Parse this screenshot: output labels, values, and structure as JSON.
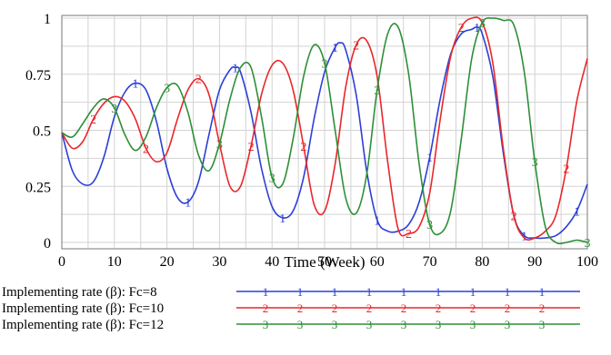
{
  "chart_data": {
    "type": "line",
    "title": "",
    "xlabel": "Time (Week)",
    "ylabel": "",
    "xlim": [
      0,
      100
    ],
    "ylim": [
      0,
      1
    ],
    "x_ticks": [
      "0",
      "10",
      "20",
      "30",
      "40",
      "50",
      "60",
      "70",
      "80",
      "90",
      "100"
    ],
    "y_ticks": [
      "0",
      "0.25",
      "0.5",
      "0.75",
      "1"
    ],
    "grid": true,
    "legend_position": "bottom",
    "series": [
      {
        "name": "Implementing rate (β): Fc=8",
        "marker": "1",
        "color": "#2b3fd6",
        "x": [
          0,
          2,
          4,
          6,
          8,
          10,
          12,
          14,
          16,
          18,
          20,
          22,
          24,
          26,
          28,
          30,
          32,
          33,
          34,
          36,
          38,
          40,
          42,
          44,
          46,
          48,
          50,
          52,
          53,
          54,
          56,
          58,
          60,
          62,
          64,
          66,
          68,
          70,
          72,
          74,
          76,
          78,
          79,
          80,
          82,
          84,
          86,
          88,
          90,
          92,
          94,
          96,
          98,
          100
        ],
        "values": [
          0.49,
          0.32,
          0.26,
          0.27,
          0.38,
          0.56,
          0.67,
          0.71,
          0.68,
          0.54,
          0.33,
          0.2,
          0.18,
          0.27,
          0.48,
          0.68,
          0.77,
          0.78,
          0.76,
          0.58,
          0.33,
          0.16,
          0.11,
          0.14,
          0.29,
          0.55,
          0.76,
          0.87,
          0.89,
          0.86,
          0.66,
          0.32,
          0.1,
          0.05,
          0.05,
          0.08,
          0.18,
          0.38,
          0.64,
          0.84,
          0.93,
          0.95,
          0.96,
          0.93,
          0.74,
          0.4,
          0.12,
          0.03,
          0.02,
          0.02,
          0.03,
          0.07,
          0.14,
          0.26
        ]
      },
      {
        "name": "Implementing rate (β): Fc=10",
        "marker": "2",
        "color": "#e8272b",
        "x": [
          0,
          2,
          4,
          6,
          8,
          10,
          12,
          14,
          16,
          18,
          20,
          22,
          24,
          26,
          28,
          30,
          32,
          34,
          36,
          38,
          40,
          42,
          44,
          46,
          48,
          50,
          52,
          54,
          56,
          58,
          60,
          62,
          64,
          66,
          68,
          70,
          72,
          74,
          76,
          78,
          80,
          82,
          84,
          86,
          88,
          90,
          92,
          94,
          96,
          98,
          100
        ],
        "values": [
          0.49,
          0.42,
          0.45,
          0.55,
          0.62,
          0.65,
          0.63,
          0.55,
          0.42,
          0.36,
          0.4,
          0.55,
          0.68,
          0.73,
          0.66,
          0.44,
          0.25,
          0.25,
          0.43,
          0.66,
          0.79,
          0.8,
          0.68,
          0.43,
          0.17,
          0.14,
          0.35,
          0.69,
          0.88,
          0.9,
          0.74,
          0.36,
          0.06,
          0.04,
          0.07,
          0.22,
          0.55,
          0.83,
          0.96,
          1.0,
          0.98,
          0.8,
          0.42,
          0.12,
          0.02,
          0.02,
          0.05,
          0.12,
          0.33,
          0.63,
          0.82
        ]
      },
      {
        "name": "Implementing rate (β): Fc=12",
        "marker": "3",
        "color": "#2e8f37",
        "x": [
          0,
          2,
          4,
          6,
          8,
          10,
          12,
          14,
          16,
          18,
          20,
          22,
          24,
          26,
          28,
          30,
          32,
          34,
          36,
          38,
          40,
          42,
          44,
          46,
          48,
          50,
          52,
          54,
          56,
          58,
          60,
          62,
          64,
          66,
          68,
          70,
          72,
          74,
          76,
          78,
          80,
          82,
          84,
          86,
          88,
          90,
          92,
          94,
          96,
          98,
          100
        ],
        "values": [
          0.49,
          0.47,
          0.53,
          0.6,
          0.64,
          0.6,
          0.48,
          0.41,
          0.47,
          0.6,
          0.69,
          0.7,
          0.58,
          0.39,
          0.32,
          0.44,
          0.64,
          0.78,
          0.78,
          0.56,
          0.29,
          0.26,
          0.46,
          0.74,
          0.88,
          0.8,
          0.5,
          0.2,
          0.13,
          0.3,
          0.68,
          0.93,
          0.96,
          0.75,
          0.35,
          0.08,
          0.04,
          0.14,
          0.46,
          0.82,
          0.98,
          1.0,
          0.99,
          0.97,
          0.76,
          0.36,
          0.07,
          0.0,
          0.0,
          0.01,
          0.0
        ]
      }
    ]
  }
}
